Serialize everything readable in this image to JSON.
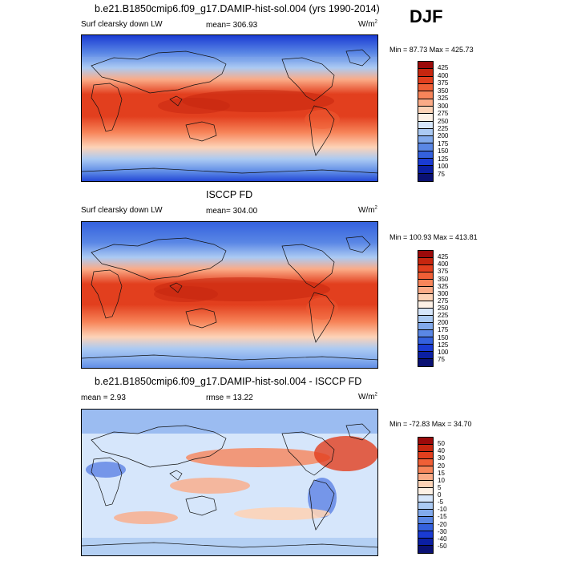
{
  "season": "DJF",
  "panels": [
    {
      "title": "b.e21.B1850cmip6.f09_g17.DAMIP-hist-sol.004 (yrs 1990-2014)",
      "left_label": "Surf clearsky down LW",
      "center_label": "mean= 306.93",
      "units": "W/m",
      "units_sup": "2",
      "minmax": "Min =  87.73 Max = 425.73",
      "levels": [
        "425",
        "400",
        "375",
        "350",
        "325",
        "300",
        "275",
        "250",
        "225",
        "200",
        "175",
        "150",
        "125",
        "100",
        "75"
      ],
      "colors": [
        "#9b0a0a",
        "#c6260f",
        "#e23f1e",
        "#ef5f36",
        "#f7855a",
        "#fbab87",
        "#fdd3b7",
        "#fdf1e6",
        "#d6e6fb",
        "#abcaf3",
        "#82aaec",
        "#5a87e5",
        "#3461de",
        "#1a3bd3",
        "#0b1fa3",
        "#0a1173"
      ]
    },
    {
      "title": "ISCCP FD",
      "left_label": "Surf clearsky down LW",
      "center_label": "mean= 304.00",
      "units": "W/m",
      "units_sup": "2",
      "minmax": "Min = 100.93 Max = 413.81",
      "levels": [
        "425",
        "400",
        "375",
        "350",
        "325",
        "300",
        "275",
        "250",
        "225",
        "200",
        "175",
        "150",
        "125",
        "100",
        "75"
      ],
      "colors": [
        "#9b0a0a",
        "#c6260f",
        "#e23f1e",
        "#ef5f36",
        "#f7855a",
        "#fbab87",
        "#fdd3b7",
        "#fdf1e6",
        "#d6e6fb",
        "#abcaf3",
        "#82aaec",
        "#5a87e5",
        "#3461de",
        "#1a3bd3",
        "#0b1fa3",
        "#0a1173"
      ]
    },
    {
      "title": "b.e21.B1850cmip6.f09_g17.DAMIP-hist-sol.004 - ISCCP FD",
      "left_label": "mean =   2.93",
      "center_label": "rmse =  13.22",
      "units": "W/m",
      "units_sup": "2",
      "minmax": "Min = -72.83 Max =  34.70",
      "levels": [
        "50",
        "40",
        "30",
        "20",
        "15",
        "10",
        "5",
        "0",
        "-5",
        "-10",
        "-15",
        "-20",
        "-30",
        "-40",
        "-50"
      ],
      "colors": [
        "#9b0a0a",
        "#c6260f",
        "#e23f1e",
        "#ef5f36",
        "#f7855a",
        "#fbab87",
        "#fdd3b7",
        "#fdf1e6",
        "#d6e6fb",
        "#abcaf3",
        "#82aaec",
        "#5a87e5",
        "#3461de",
        "#1a3bd3",
        "#0b1fa3",
        "#0a1173"
      ]
    }
  ],
  "chart_data": [
    {
      "type": "heatmap",
      "title": "b.e21.B1850cmip6.f09_g17.DAMIP-hist-sol.004 (yrs 1990-2014)",
      "variable": "Surf clearsky down LW",
      "units": "W/m2",
      "mean": 306.93,
      "min": 87.73,
      "max": 425.73,
      "contour_levels": [
        75,
        100,
        125,
        150,
        175,
        200,
        225,
        250,
        275,
        300,
        325,
        350,
        375,
        400,
        425
      ],
      "projection": "global cylindrical equidistant, Pacific-centered"
    },
    {
      "type": "heatmap",
      "title": "ISCCP FD",
      "variable": "Surf clearsky down LW",
      "units": "W/m2",
      "mean": 304.0,
      "min": 100.93,
      "max": 413.81,
      "contour_levels": [
        75,
        100,
        125,
        150,
        175,
        200,
        225,
        250,
        275,
        300,
        325,
        350,
        375,
        400,
        425
      ],
      "projection": "global cylindrical equidistant, Pacific-centered"
    },
    {
      "type": "heatmap",
      "title": "b.e21.B1850cmip6.f09_g17.DAMIP-hist-sol.004 - ISCCP FD",
      "units": "W/m2",
      "mean": 2.93,
      "rmse": 13.22,
      "min": -72.83,
      "max": 34.7,
      "contour_levels": [
        -50,
        -40,
        -30,
        -20,
        -15,
        -10,
        -5,
        0,
        5,
        10,
        15,
        20,
        30,
        40,
        50
      ],
      "projection": "global cylindrical equidistant, Pacific-centered"
    }
  ]
}
